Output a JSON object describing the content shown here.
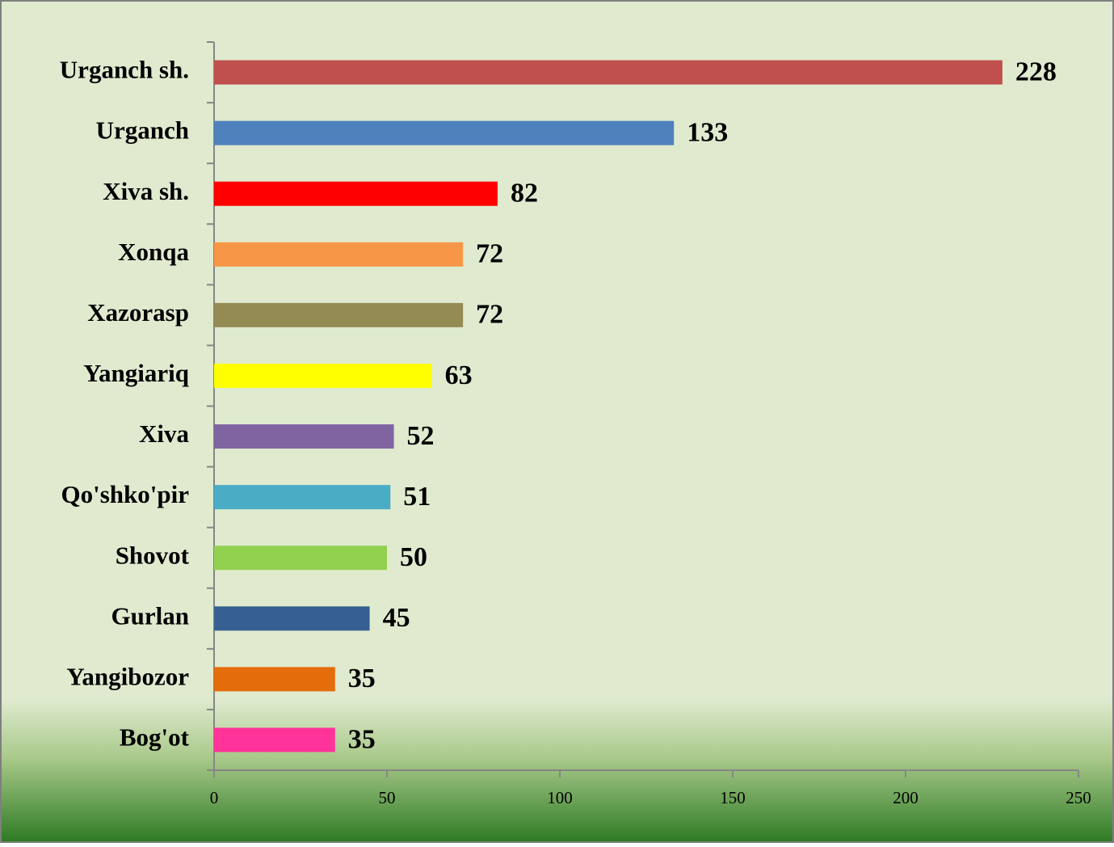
{
  "chart_data": {
    "type": "hbar",
    "categories": [
      "Urganch sh.",
      "Urganch",
      "Xiva sh.",
      "Xonqa",
      "Xazorasp",
      "Yangiariq",
      "Xiva",
      "Qo'shko'pir",
      "Shovot",
      "Gurlan",
      "Yangibozor",
      "Bog'ot"
    ],
    "values": [
      228,
      133,
      82,
      72,
      72,
      63,
      52,
      51,
      50,
      45,
      35,
      35
    ],
    "colors": [
      "#c0504d",
      "#4f81bd",
      "#ff0000",
      "#f79646",
      "#948a54",
      "#ffff00",
      "#8064a2",
      "#4bacc6",
      "#92d050",
      "#366092",
      "#e46c0a",
      "#ff3399"
    ],
    "xlim": [
      0,
      250
    ],
    "xticks": [
      0,
      50,
      100,
      150,
      200,
      250
    ]
  }
}
